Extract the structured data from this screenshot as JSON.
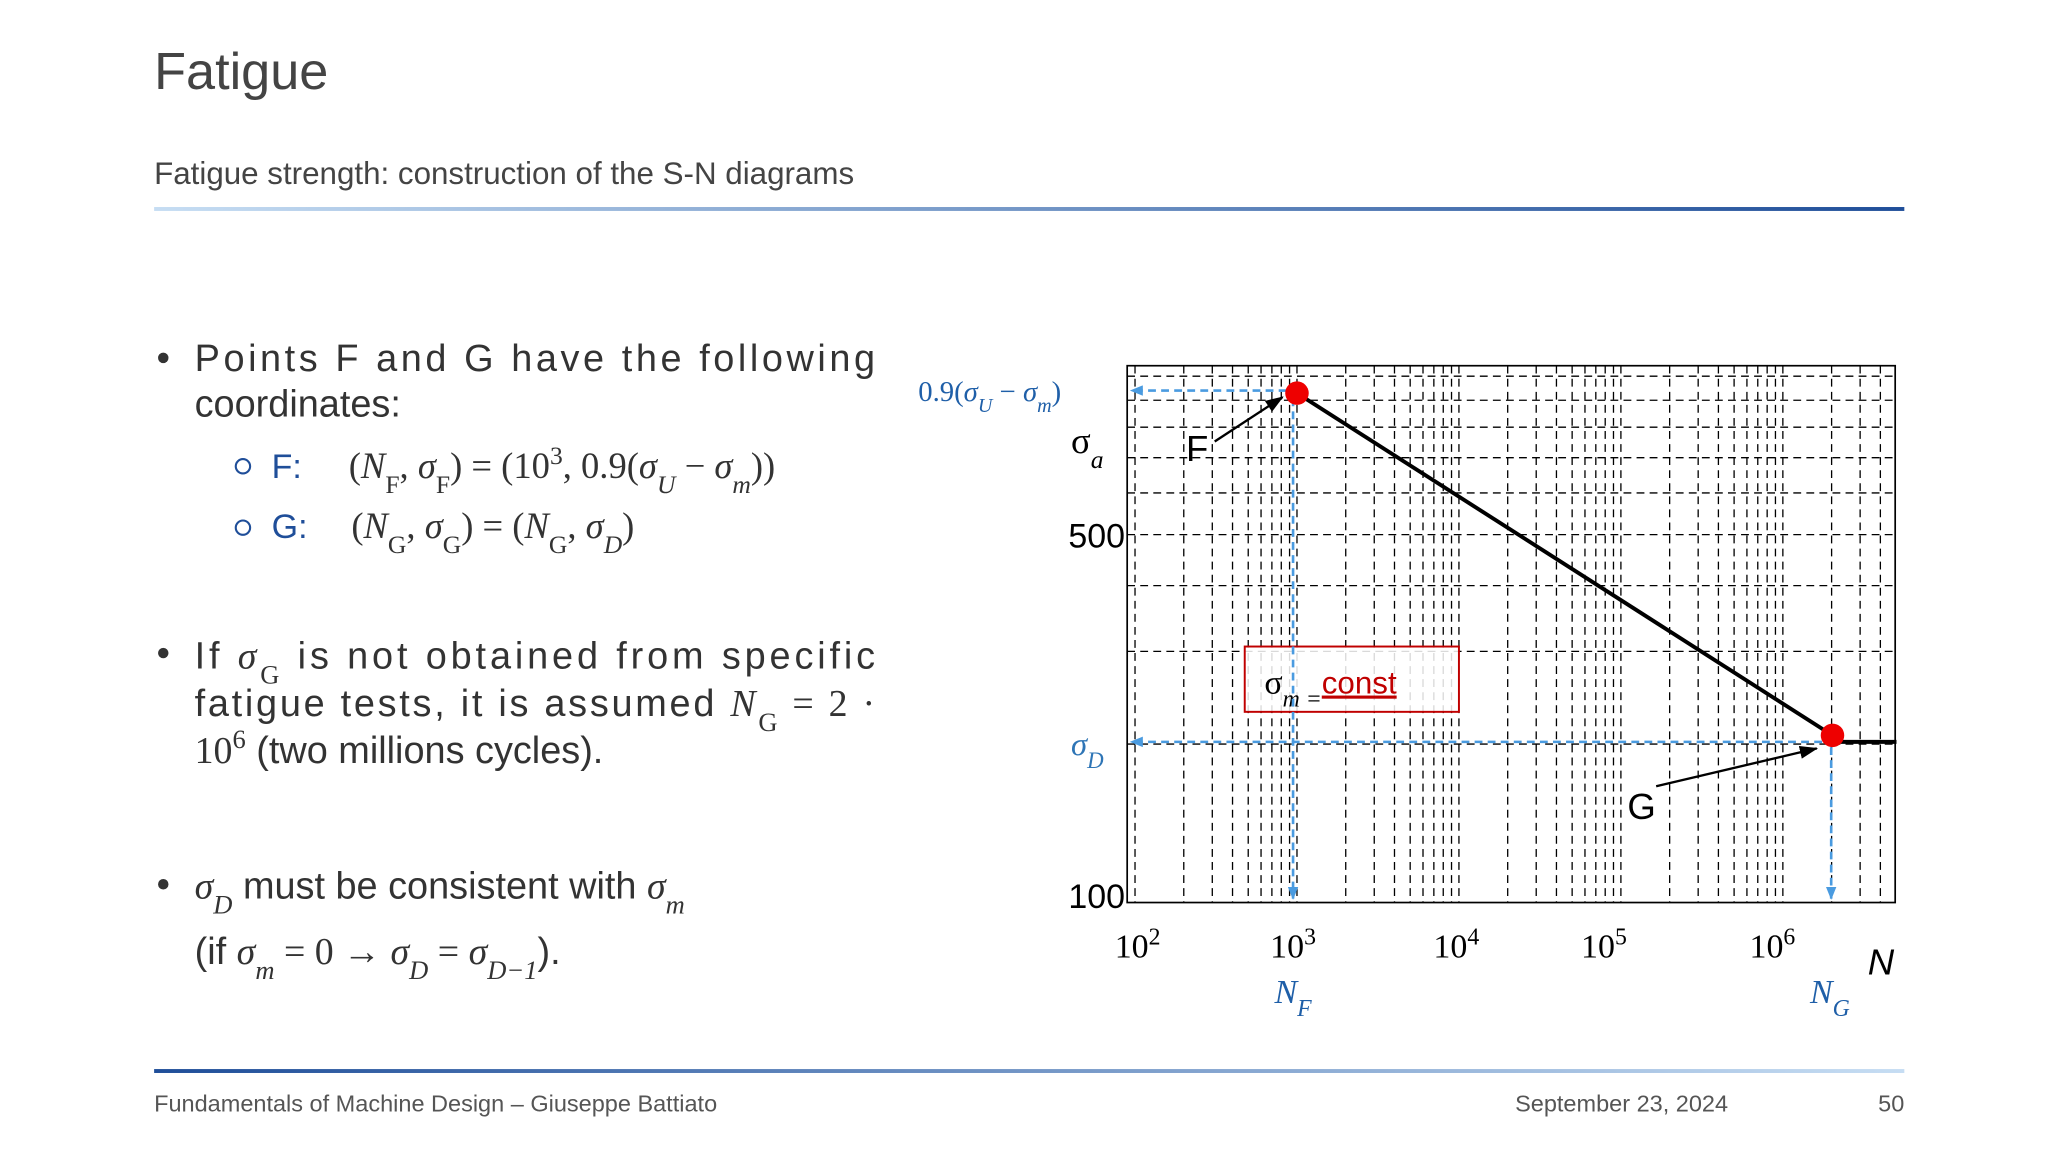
{
  "header": {
    "title": "Fatigue",
    "subtitle": "Fatigue strength: construction of the S-N diagrams"
  },
  "bullets": [
    {
      "lines": [
        "Points F and G have the following",
        "coordinates:"
      ],
      "items": [
        {
          "label": "F:",
          "math": [
            "(",
            "N",
            "F",
            ", ",
            "σ",
            "F",
            ") = (10",
            "3",
            ", 0.9(",
            "σ",
            "U",
            " − ",
            "σ",
            "m",
            "))"
          ]
        },
        {
          "label": "G:",
          "math": [
            "(",
            "N",
            "G",
            ", ",
            "σ",
            "G",
            ") = (",
            "N",
            "G",
            ", ",
            "σ",
            "D",
            ")"
          ]
        }
      ]
    },
    {
      "lines": [
        [
          "If ",
          "σ",
          "G",
          " is not obtained from specific"
        ],
        [
          "fatigue tests, it is assumed ",
          "N",
          "G",
          " = 2 ·"
        ],
        [
          "10",
          "6",
          " (two millions cycles)."
        ]
      ]
    },
    {
      "lines": [
        [
          "σ",
          "D",
          " must be consistent with ",
          "σ",
          "m"
        ],
        [
          "(if ",
          "σ",
          "m",
          " = 0 → ",
          "σ",
          "D",
          " = ",
          "σ",
          "D−1",
          ")."
        ]
      ]
    }
  ],
  "figure": {
    "y_top_label": [
      "0.9(",
      "σ",
      "U",
      " − ",
      "σ",
      "m",
      ")"
    ],
    "y_axis_label": [
      "σ",
      "a"
    ],
    "y_ticks": [
      "500",
      "100"
    ],
    "sigma_d": [
      "σ",
      "D"
    ],
    "x_ticks": [
      [
        "10",
        "2"
      ],
      [
        "10",
        "3"
      ],
      [
        "10",
        "4"
      ],
      [
        "10",
        "5"
      ],
      [
        "10",
        "6"
      ]
    ],
    "x_axis_label": "N",
    "nf": [
      "N",
      "F"
    ],
    "ng": [
      "N",
      "G"
    ],
    "point_f": "F",
    "point_g": "G",
    "box": [
      "σ",
      "m =",
      "const"
    ]
  },
  "footer": {
    "left": "Fundamentals of Machine Design – Giuseppe Battiato",
    "date": "September 23, 2024",
    "page": "50"
  }
}
